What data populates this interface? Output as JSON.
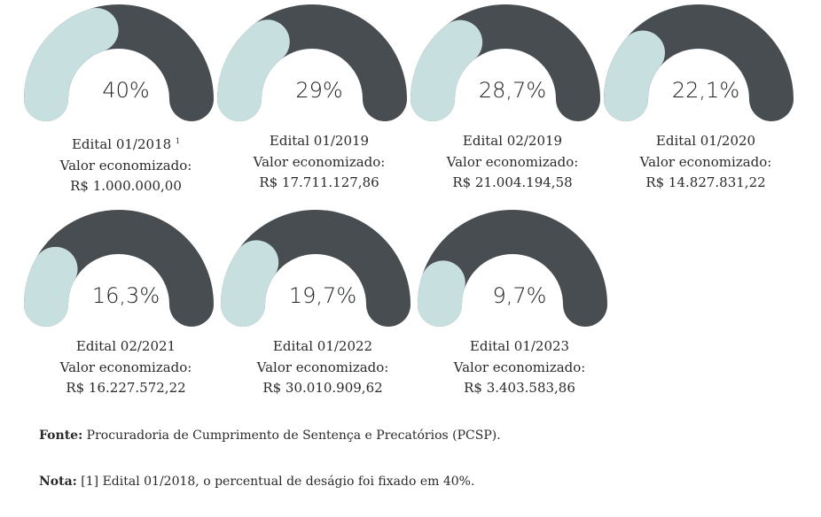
{
  "chart_data": {
    "type": "gauge",
    "track_color": "#484d52",
    "fill_color": "#c8dfe0",
    "items": [
      {
        "label": "Edital 01/2018",
        "footnote": "1",
        "percent_label": "40%",
        "percent": 40,
        "valor_label": "Valor economizado:",
        "valor": "R$ 1.000.000,00"
      },
      {
        "label": "Edital 01/2019",
        "footnote": "",
        "percent_label": "29%",
        "percent": 29,
        "valor_label": "Valor economizado:",
        "valor": "R$ 17.711.127,86"
      },
      {
        "label": "Edital 02/2019",
        "footnote": "",
        "percent_label": "28,7%",
        "percent": 28.7,
        "valor_label": "Valor economizado:",
        "valor": "R$ 21.004.194,58"
      },
      {
        "label": "Edital 01/2020",
        "footnote": "",
        "percent_label": "22,1%",
        "percent": 22.1,
        "valor_label": "Valor economizado:",
        "valor": "R$ 14.827.831,22"
      },
      {
        "label": "Edital 02/2021",
        "footnote": "",
        "percent_label": "16,3%",
        "percent": 16.3,
        "valor_label": "Valor economizado:",
        "valor": "R$ 16.227.572,22"
      },
      {
        "label": "Edital 01/2022",
        "footnote": "",
        "percent_label": "19,7%",
        "percent": 19.7,
        "valor_label": "Valor economizado:",
        "valor": "R$ 30.010.909,62"
      },
      {
        "label": "Edital 01/2023",
        "footnote": "",
        "percent_label": "9,7%",
        "percent": 9.7,
        "valor_label": "Valor economizado:",
        "valor": "R$ 3.403.583,86"
      }
    ]
  },
  "notes": {
    "fonte_label": "Fonte:",
    "fonte_text": " Procuradoria de Cumprimento de Sentença e Precatórios (PCSP).",
    "nota_label": "Nota:",
    "nota_text": " [1] Edital 01/2018, o percentual de deságio foi fixado em 40%."
  }
}
